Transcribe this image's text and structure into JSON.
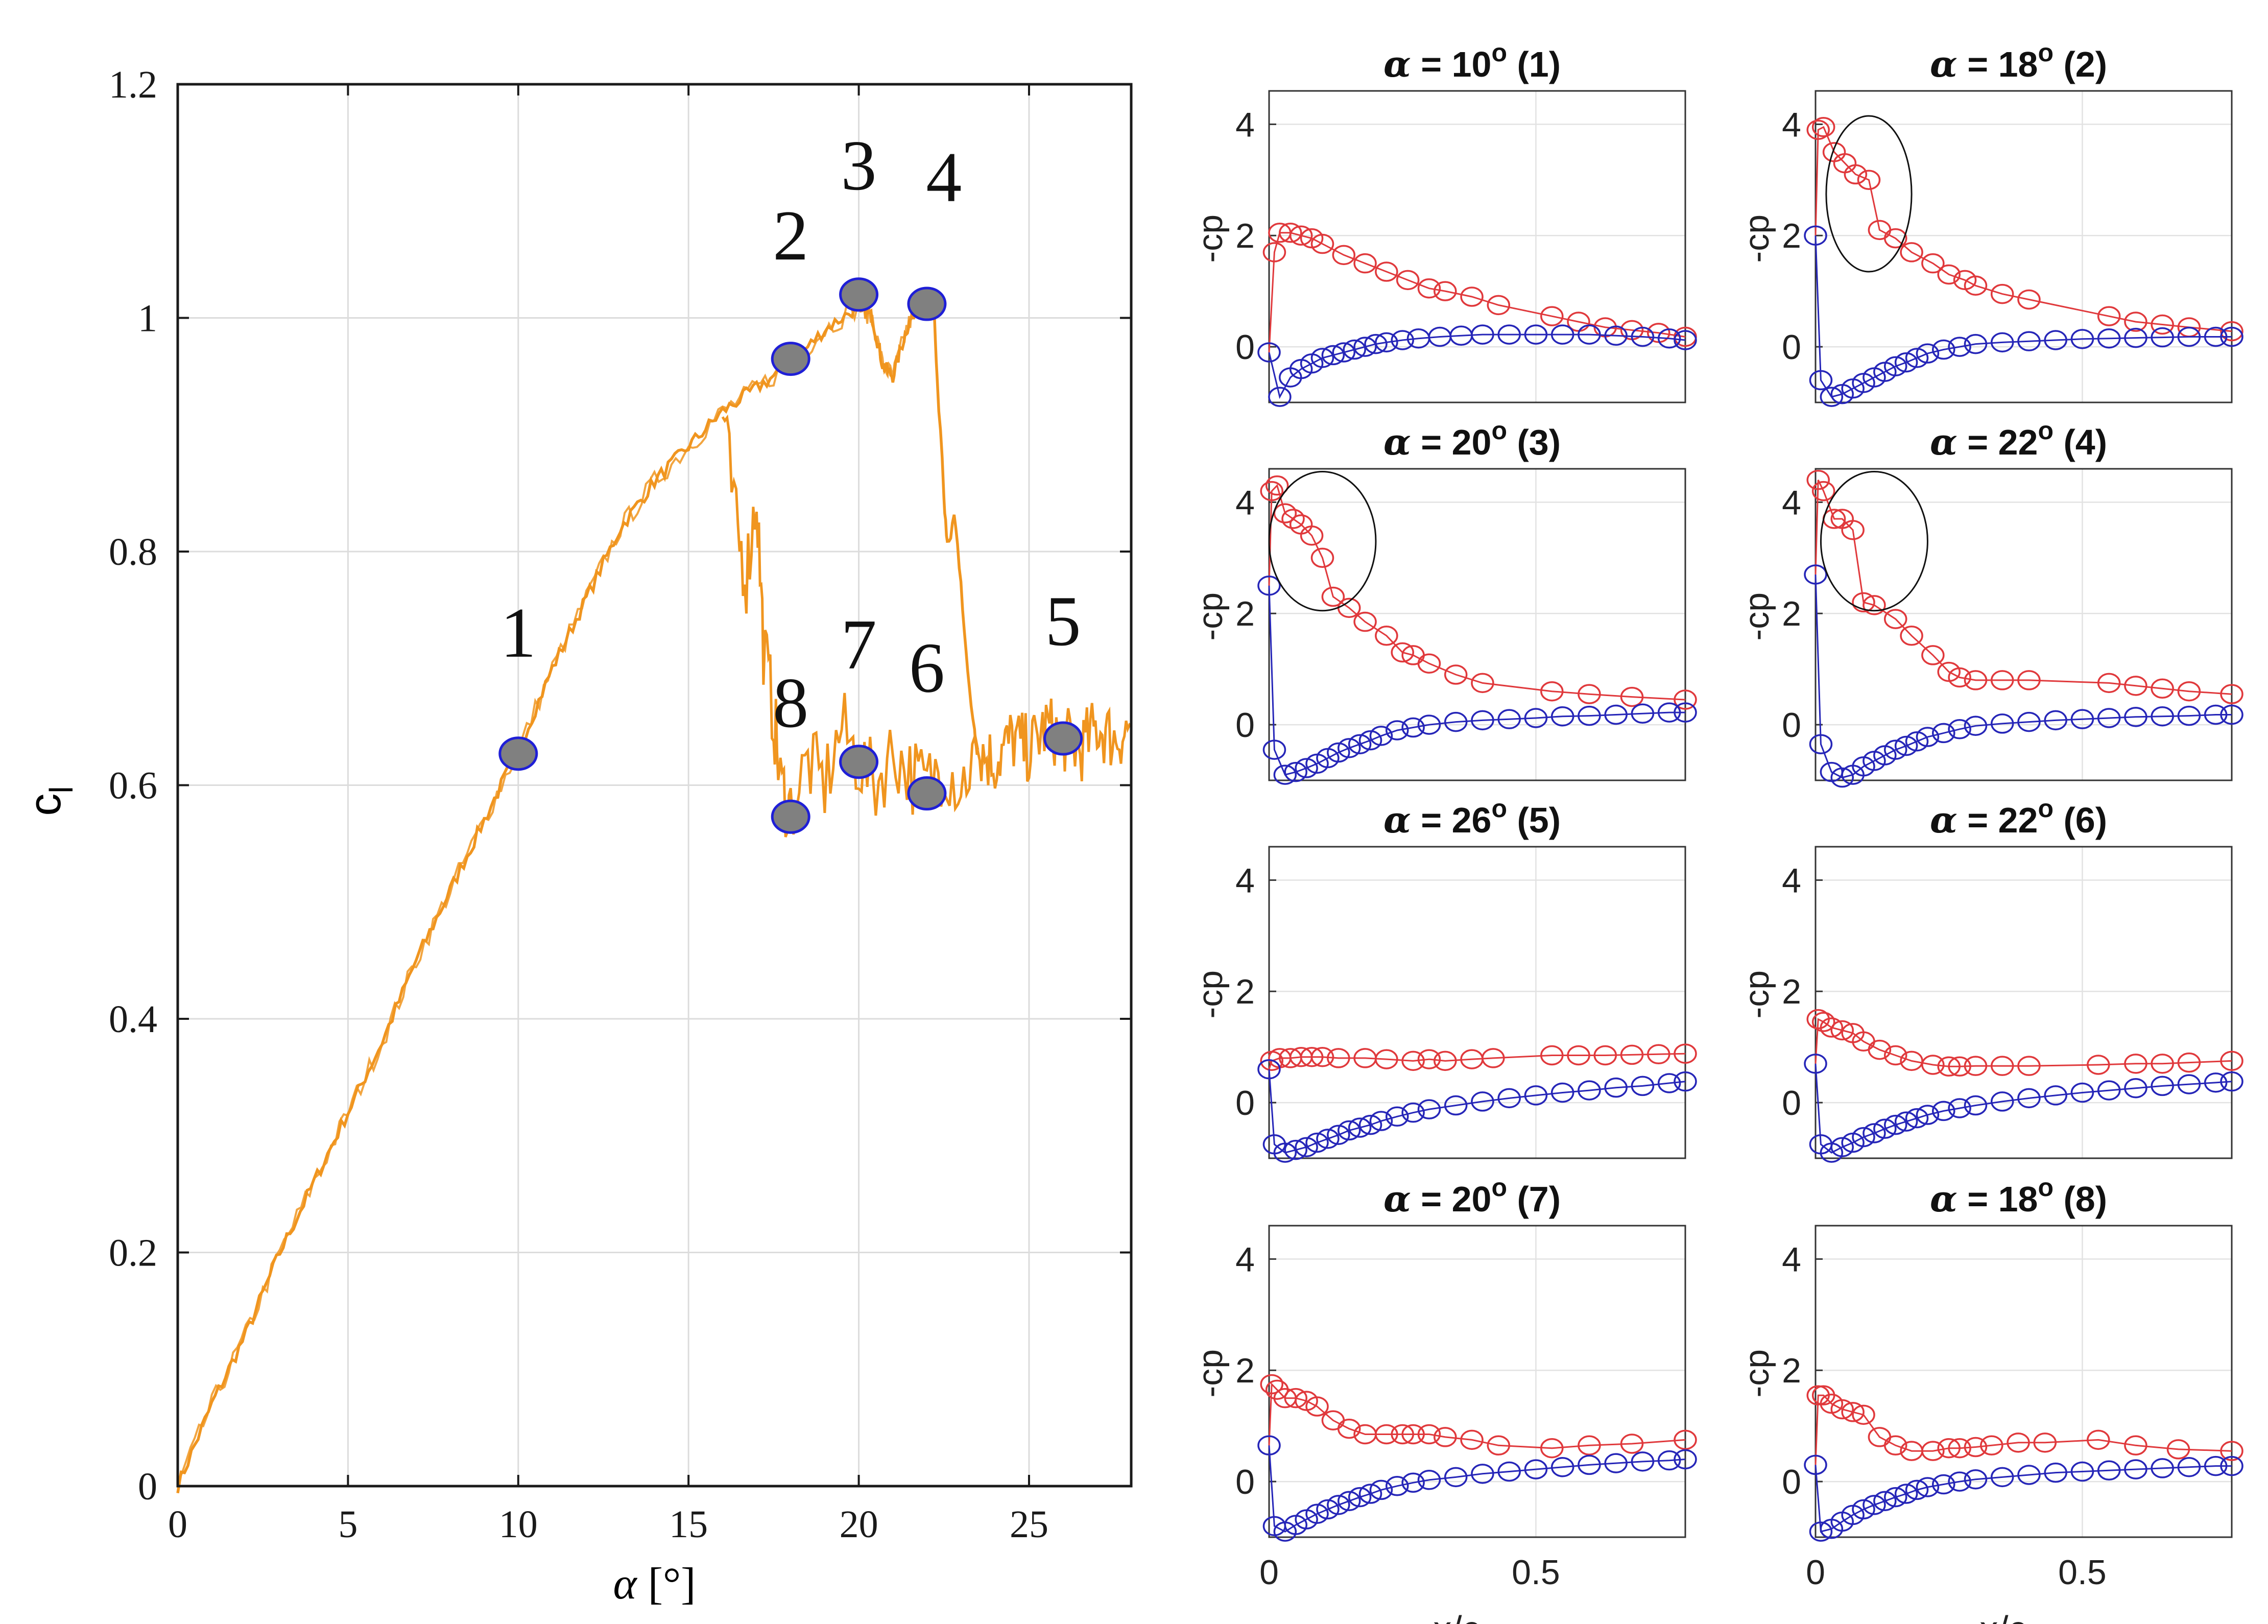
{
  "main_chart": {
    "type": "line",
    "xlabel_symbol": "α",
    "xlabel_unit": "[°]",
    "ylabel_main": "c",
    "ylabel_sub": "l",
    "xlim": [
      0,
      28
    ],
    "ylim": [
      0,
      1.2
    ],
    "xticks": [
      "0",
      "5",
      "10",
      "15",
      "20",
      "25"
    ],
    "xtick_values": [
      0,
      5,
      10,
      15,
      20,
      25
    ],
    "yticks": [
      "0",
      "0.2",
      "0.4",
      "0.6",
      "0.8",
      "1",
      "1.2"
    ],
    "ytick_values": [
      0,
      0.2,
      0.4,
      0.6,
      0.8,
      1.0,
      1.2
    ],
    "grid": true,
    "line_color": "#f0951f",
    "marker_fill": "#808080",
    "marker_edge": "#1f1fd6",
    "upper_branch": {
      "x": [
        0,
        1,
        2,
        3,
        4,
        5,
        6,
        7,
        8,
        9,
        10,
        11,
        12,
        13,
        14,
        15,
        16,
        17,
        18,
        19,
        20,
        20.4,
        20.7,
        21,
        21.4,
        21.7,
        22,
        22.2
      ],
      "y": [
        0,
        0.07,
        0.13,
        0.2,
        0.26,
        0.32,
        0.38,
        0.45,
        0.51,
        0.57,
        0.63,
        0.7,
        0.76,
        0.82,
        0.86,
        0.89,
        0.92,
        0.94,
        0.96,
        0.99,
        1.01,
        1.0,
        0.96,
        0.95,
        0.99,
        1.01,
        1.01,
        1.01
      ]
    },
    "stall_drop": {
      "x": [
        22.2,
        22.3,
        22.5,
        22.6,
        22.8,
        23.0,
        23.2,
        23.4,
        23.5
      ],
      "y": [
        1.01,
        0.95,
        0.85,
        0.8,
        0.83,
        0.78,
        0.69,
        0.65,
        0.63
      ]
    },
    "post_stall": {
      "x": [
        23.5,
        24,
        24.5,
        25,
        25.5,
        26,
        26.5,
        27,
        27.5,
        28
      ],
      "y": [
        0.63,
        0.62,
        0.64,
        0.63,
        0.65,
        0.64,
        0.63,
        0.65,
        0.64,
        0.65
      ]
    },
    "hysteresis_branch": {
      "x": [
        16.0,
        16.4,
        16.7,
        17.0,
        17.2,
        17.5,
        17.7,
        18.0,
        18.5,
        19.0,
        19.5,
        20.0,
        20.5,
        21.0,
        21.5,
        22.0,
        22.5,
        23.0,
        23.5
      ],
      "y": [
        0.92,
        0.82,
        0.78,
        0.85,
        0.72,
        0.66,
        0.6,
        0.58,
        0.62,
        0.6,
        0.65,
        0.62,
        0.6,
        0.63,
        0.61,
        0.6,
        0.62,
        0.6,
        0.63
      ]
    },
    "points": [
      {
        "label": "1",
        "x": 10,
        "y": 0.627,
        "label_x": 10,
        "label_y": 0.71
      },
      {
        "label": "2",
        "x": 18,
        "y": 0.965,
        "label_x": 18,
        "label_y": 1.05
      },
      {
        "label": "3",
        "x": 20,
        "y": 1.02,
        "label_x": 20,
        "label_y": 1.11
      },
      {
        "label": "4",
        "x": 22,
        "y": 1.012,
        "label_x": 22.5,
        "label_y": 1.1
      },
      {
        "label": "5",
        "x": 26,
        "y": 0.64,
        "label_x": 26,
        "label_y": 0.72
      },
      {
        "label": "6",
        "x": 22,
        "y": 0.593,
        "label_x": 22,
        "label_y": 0.68
      },
      {
        "label": "7",
        "x": 20,
        "y": 0.62,
        "label_x": 20,
        "label_y": 0.7
      },
      {
        "label": "8",
        "x": 18,
        "y": 0.573,
        "label_x": 18,
        "label_y": 0.65
      }
    ]
  },
  "cp_panels": {
    "xlabel": "x/c",
    "ylabel": "-cp",
    "xlim": [
      0,
      0.78
    ],
    "ylim": [
      -1,
      4.6
    ],
    "xticks": [
      "0",
      "0.5"
    ],
    "xtick_values": [
      0,
      0.5
    ],
    "yticks": [
      "0",
      "2",
      "4"
    ],
    "ytick_values": [
      0,
      2,
      4
    ],
    "suction_color": "#e0393c",
    "pressure_color": "#2626b8",
    "panels": [
      {
        "title_symbol": "α",
        "title_eq": " = 10",
        "title_deg": "o",
        "title_tag": " (1)",
        "suction_x": [
          0.01,
          0.02,
          0.04,
          0.06,
          0.08,
          0.1,
          0.14,
          0.18,
          0.22,
          0.26,
          0.3,
          0.33,
          0.38,
          0.43,
          0.53,
          0.58,
          0.63,
          0.68,
          0.73,
          0.78
        ],
        "suction_y": [
          1.7,
          2.05,
          2.05,
          2.0,
          1.95,
          1.85,
          1.65,
          1.5,
          1.35,
          1.2,
          1.05,
          1.0,
          0.9,
          0.75,
          0.55,
          0.45,
          0.35,
          0.3,
          0.25,
          0.18
        ],
        "pressure_x": [
          0.0,
          0.02,
          0.04,
          0.06,
          0.08,
          0.1,
          0.12,
          0.14,
          0.16,
          0.18,
          0.2,
          0.22,
          0.25,
          0.28,
          0.32,
          0.36,
          0.4,
          0.45,
          0.5,
          0.55,
          0.6,
          0.65,
          0.7,
          0.75,
          0.78
        ],
        "pressure_y": [
          -0.1,
          -0.9,
          -0.55,
          -0.4,
          -0.3,
          -0.2,
          -0.15,
          -0.1,
          -0.05,
          0.0,
          0.05,
          0.08,
          0.12,
          0.15,
          0.18,
          0.2,
          0.22,
          0.22,
          0.22,
          0.22,
          0.22,
          0.2,
          0.18,
          0.15,
          0.12
        ],
        "ellipse": null
      },
      {
        "title_symbol": "α",
        "title_eq": " = 18",
        "title_deg": "o",
        "title_tag": " (2)",
        "suction_x": [
          0.005,
          0.015,
          0.035,
          0.055,
          0.075,
          0.1,
          0.12,
          0.15,
          0.18,
          0.22,
          0.25,
          0.28,
          0.3,
          0.35,
          0.4,
          0.55,
          0.6,
          0.65,
          0.7,
          0.78
        ],
        "suction_y": [
          3.9,
          3.95,
          3.5,
          3.3,
          3.1,
          3.0,
          2.1,
          1.95,
          1.7,
          1.5,
          1.3,
          1.2,
          1.1,
          0.95,
          0.85,
          0.55,
          0.45,
          0.4,
          0.35,
          0.28
        ],
        "pressure_x": [
          0.0,
          0.01,
          0.03,
          0.05,
          0.07,
          0.09,
          0.11,
          0.13,
          0.15,
          0.17,
          0.19,
          0.21,
          0.24,
          0.27,
          0.3,
          0.35,
          0.4,
          0.45,
          0.5,
          0.55,
          0.6,
          0.65,
          0.7,
          0.75,
          0.78
        ],
        "pressure_y": [
          2.0,
          -0.6,
          -0.9,
          -0.85,
          -0.75,
          -0.65,
          -0.55,
          -0.45,
          -0.35,
          -0.28,
          -0.2,
          -0.12,
          -0.05,
          0.0,
          0.05,
          0.08,
          0.1,
          0.12,
          0.14,
          0.15,
          0.16,
          0.17,
          0.18,
          0.18,
          0.18
        ],
        "ellipse": {
          "cx": 0.1,
          "cy": 2.75,
          "rx": 0.08,
          "ry": 1.4
        }
      },
      {
        "title_symbol": "α",
        "title_eq": " = 20",
        "title_deg": "o",
        "title_tag": " (3)",
        "suction_x": [
          0.005,
          0.015,
          0.03,
          0.045,
          0.06,
          0.08,
          0.1,
          0.12,
          0.15,
          0.18,
          0.22,
          0.25,
          0.27,
          0.3,
          0.35,
          0.4,
          0.53,
          0.6,
          0.68,
          0.78
        ],
        "suction_y": [
          4.2,
          4.3,
          3.8,
          3.7,
          3.6,
          3.4,
          3.0,
          2.3,
          2.1,
          1.85,
          1.6,
          1.3,
          1.25,
          1.1,
          0.9,
          0.75,
          0.6,
          0.55,
          0.5,
          0.45
        ],
        "pressure_x": [
          0.0,
          0.01,
          0.03,
          0.05,
          0.07,
          0.09,
          0.11,
          0.13,
          0.15,
          0.17,
          0.19,
          0.21,
          0.24,
          0.27,
          0.3,
          0.35,
          0.4,
          0.45,
          0.5,
          0.55,
          0.6,
          0.65,
          0.7,
          0.75,
          0.78
        ],
        "pressure_y": [
          2.5,
          -0.45,
          -0.9,
          -0.85,
          -0.78,
          -0.7,
          -0.6,
          -0.5,
          -0.42,
          -0.35,
          -0.28,
          -0.2,
          -0.1,
          -0.05,
          0.0,
          0.05,
          0.08,
          0.1,
          0.12,
          0.15,
          0.16,
          0.18,
          0.2,
          0.22,
          0.22
        ],
        "ellipse": {
          "cx": 0.1,
          "cy": 3.3,
          "rx": 0.1,
          "ry": 1.25
        }
      },
      {
        "title_symbol": "α",
        "title_eq": " = 22",
        "title_deg": "o",
        "title_tag": " (4)",
        "suction_x": [
          0.005,
          0.015,
          0.035,
          0.05,
          0.07,
          0.09,
          0.11,
          0.15,
          0.18,
          0.22,
          0.25,
          0.27,
          0.3,
          0.35,
          0.4,
          0.55,
          0.6,
          0.65,
          0.7,
          0.78
        ],
        "suction_y": [
          4.4,
          4.2,
          3.7,
          3.7,
          3.5,
          2.2,
          2.15,
          1.9,
          1.6,
          1.25,
          0.95,
          0.85,
          0.8,
          0.8,
          0.8,
          0.75,
          0.7,
          0.65,
          0.6,
          0.55
        ],
        "pressure_x": [
          0.0,
          0.01,
          0.03,
          0.05,
          0.07,
          0.09,
          0.11,
          0.13,
          0.15,
          0.17,
          0.19,
          0.21,
          0.24,
          0.27,
          0.3,
          0.35,
          0.4,
          0.45,
          0.5,
          0.55,
          0.6,
          0.65,
          0.7,
          0.75,
          0.78
        ],
        "pressure_y": [
          2.7,
          -0.35,
          -0.85,
          -0.95,
          -0.9,
          -0.75,
          -0.65,
          -0.55,
          -0.45,
          -0.38,
          -0.3,
          -0.22,
          -0.15,
          -0.08,
          -0.02,
          0.02,
          0.05,
          0.08,
          0.1,
          0.12,
          0.14,
          0.15,
          0.16,
          0.18,
          0.18
        ],
        "ellipse": {
          "cx": 0.11,
          "cy": 3.3,
          "rx": 0.1,
          "ry": 1.25
        }
      },
      {
        "title_symbol": "α",
        "title_eq": " = 26",
        "title_deg": "o",
        "title_tag": " (5)",
        "suction_x": [
          0.005,
          0.02,
          0.04,
          0.06,
          0.08,
          0.1,
          0.13,
          0.18,
          0.22,
          0.27,
          0.3,
          0.33,
          0.38,
          0.42,
          0.53,
          0.58,
          0.63,
          0.68,
          0.73,
          0.78
        ],
        "suction_y": [
          0.75,
          0.8,
          0.8,
          0.82,
          0.82,
          0.82,
          0.8,
          0.8,
          0.78,
          0.75,
          0.78,
          0.75,
          0.78,
          0.8,
          0.85,
          0.85,
          0.85,
          0.86,
          0.87,
          0.88
        ],
        "pressure_x": [
          0.0,
          0.01,
          0.03,
          0.05,
          0.07,
          0.09,
          0.11,
          0.13,
          0.15,
          0.17,
          0.19,
          0.21,
          0.24,
          0.27,
          0.3,
          0.35,
          0.4,
          0.45,
          0.5,
          0.55,
          0.6,
          0.65,
          0.7,
          0.75,
          0.78
        ],
        "pressure_y": [
          0.6,
          -0.75,
          -0.9,
          -0.85,
          -0.8,
          -0.72,
          -0.65,
          -0.58,
          -0.5,
          -0.45,
          -0.4,
          -0.33,
          -0.25,
          -0.18,
          -0.12,
          -0.05,
          0.02,
          0.08,
          0.13,
          0.18,
          0.22,
          0.27,
          0.3,
          0.35,
          0.38
        ],
        "ellipse": null
      },
      {
        "title_symbol": "α",
        "title_eq": " = 22",
        "title_deg": "o",
        "title_tag": " (6)",
        "suction_x": [
          0.005,
          0.015,
          0.03,
          0.05,
          0.07,
          0.09,
          0.12,
          0.15,
          0.18,
          0.22,
          0.25,
          0.27,
          0.3,
          0.35,
          0.4,
          0.53,
          0.6,
          0.65,
          0.7,
          0.78
        ],
        "suction_y": [
          1.5,
          1.45,
          1.35,
          1.3,
          1.25,
          1.1,
          0.95,
          0.85,
          0.75,
          0.68,
          0.65,
          0.65,
          0.66,
          0.66,
          0.66,
          0.68,
          0.7,
          0.7,
          0.72,
          0.75
        ],
        "pressure_x": [
          0.0,
          0.01,
          0.03,
          0.05,
          0.07,
          0.09,
          0.11,
          0.13,
          0.15,
          0.17,
          0.19,
          0.21,
          0.24,
          0.27,
          0.3,
          0.35,
          0.4,
          0.45,
          0.5,
          0.55,
          0.6,
          0.65,
          0.7,
          0.75,
          0.78
        ],
        "pressure_y": [
          0.7,
          -0.75,
          -0.9,
          -0.8,
          -0.72,
          -0.62,
          -0.55,
          -0.47,
          -0.4,
          -0.34,
          -0.28,
          -0.22,
          -0.15,
          -0.1,
          -0.05,
          0.02,
          0.08,
          0.13,
          0.18,
          0.22,
          0.26,
          0.3,
          0.33,
          0.36,
          0.38
        ],
        "ellipse": null
      },
      {
        "title_symbol": "α",
        "title_eq": " = 20",
        "title_deg": "o",
        "title_tag": " (7)",
        "suction_x": [
          0.005,
          0.015,
          0.03,
          0.05,
          0.07,
          0.09,
          0.12,
          0.15,
          0.18,
          0.22,
          0.25,
          0.27,
          0.3,
          0.33,
          0.38,
          0.43,
          0.53,
          0.6,
          0.68,
          0.78
        ],
        "suction_y": [
          1.75,
          1.65,
          1.5,
          1.5,
          1.45,
          1.35,
          1.1,
          0.95,
          0.85,
          0.85,
          0.85,
          0.85,
          0.85,
          0.8,
          0.75,
          0.65,
          0.6,
          0.65,
          0.68,
          0.75
        ],
        "pressure_x": [
          0.0,
          0.01,
          0.03,
          0.05,
          0.07,
          0.09,
          0.11,
          0.13,
          0.15,
          0.17,
          0.19,
          0.21,
          0.24,
          0.27,
          0.3,
          0.35,
          0.4,
          0.45,
          0.5,
          0.55,
          0.6,
          0.65,
          0.7,
          0.75,
          0.78
        ],
        "pressure_y": [
          0.65,
          -0.8,
          -0.9,
          -0.78,
          -0.68,
          -0.58,
          -0.5,
          -0.42,
          -0.35,
          -0.28,
          -0.22,
          -0.15,
          -0.08,
          -0.02,
          0.03,
          0.08,
          0.14,
          0.18,
          0.22,
          0.26,
          0.3,
          0.33,
          0.36,
          0.38,
          0.4
        ],
        "ellipse": null
      },
      {
        "title_symbol": "α",
        "title_eq": " = 18",
        "title_deg": "o",
        "title_tag": " (8)",
        "suction_x": [
          0.005,
          0.015,
          0.03,
          0.05,
          0.07,
          0.09,
          0.12,
          0.15,
          0.18,
          0.22,
          0.25,
          0.27,
          0.3,
          0.33,
          0.38,
          0.43,
          0.53,
          0.6,
          0.68,
          0.78
        ],
        "suction_y": [
          1.55,
          1.55,
          1.4,
          1.3,
          1.25,
          1.2,
          0.8,
          0.65,
          0.55,
          0.55,
          0.6,
          0.6,
          0.62,
          0.65,
          0.7,
          0.7,
          0.75,
          0.65,
          0.58,
          0.55
        ],
        "pressure_x": [
          0.0,
          0.01,
          0.03,
          0.05,
          0.07,
          0.09,
          0.11,
          0.13,
          0.15,
          0.17,
          0.19,
          0.21,
          0.24,
          0.27,
          0.3,
          0.35,
          0.4,
          0.45,
          0.5,
          0.55,
          0.6,
          0.65,
          0.7,
          0.75,
          0.78
        ],
        "pressure_y": [
          0.3,
          -0.9,
          -0.85,
          -0.72,
          -0.6,
          -0.5,
          -0.42,
          -0.35,
          -0.28,
          -0.22,
          -0.15,
          -0.1,
          -0.05,
          0.0,
          0.04,
          0.08,
          0.12,
          0.16,
          0.18,
          0.2,
          0.22,
          0.24,
          0.26,
          0.28,
          0.28
        ],
        "ellipse": null
      }
    ]
  }
}
